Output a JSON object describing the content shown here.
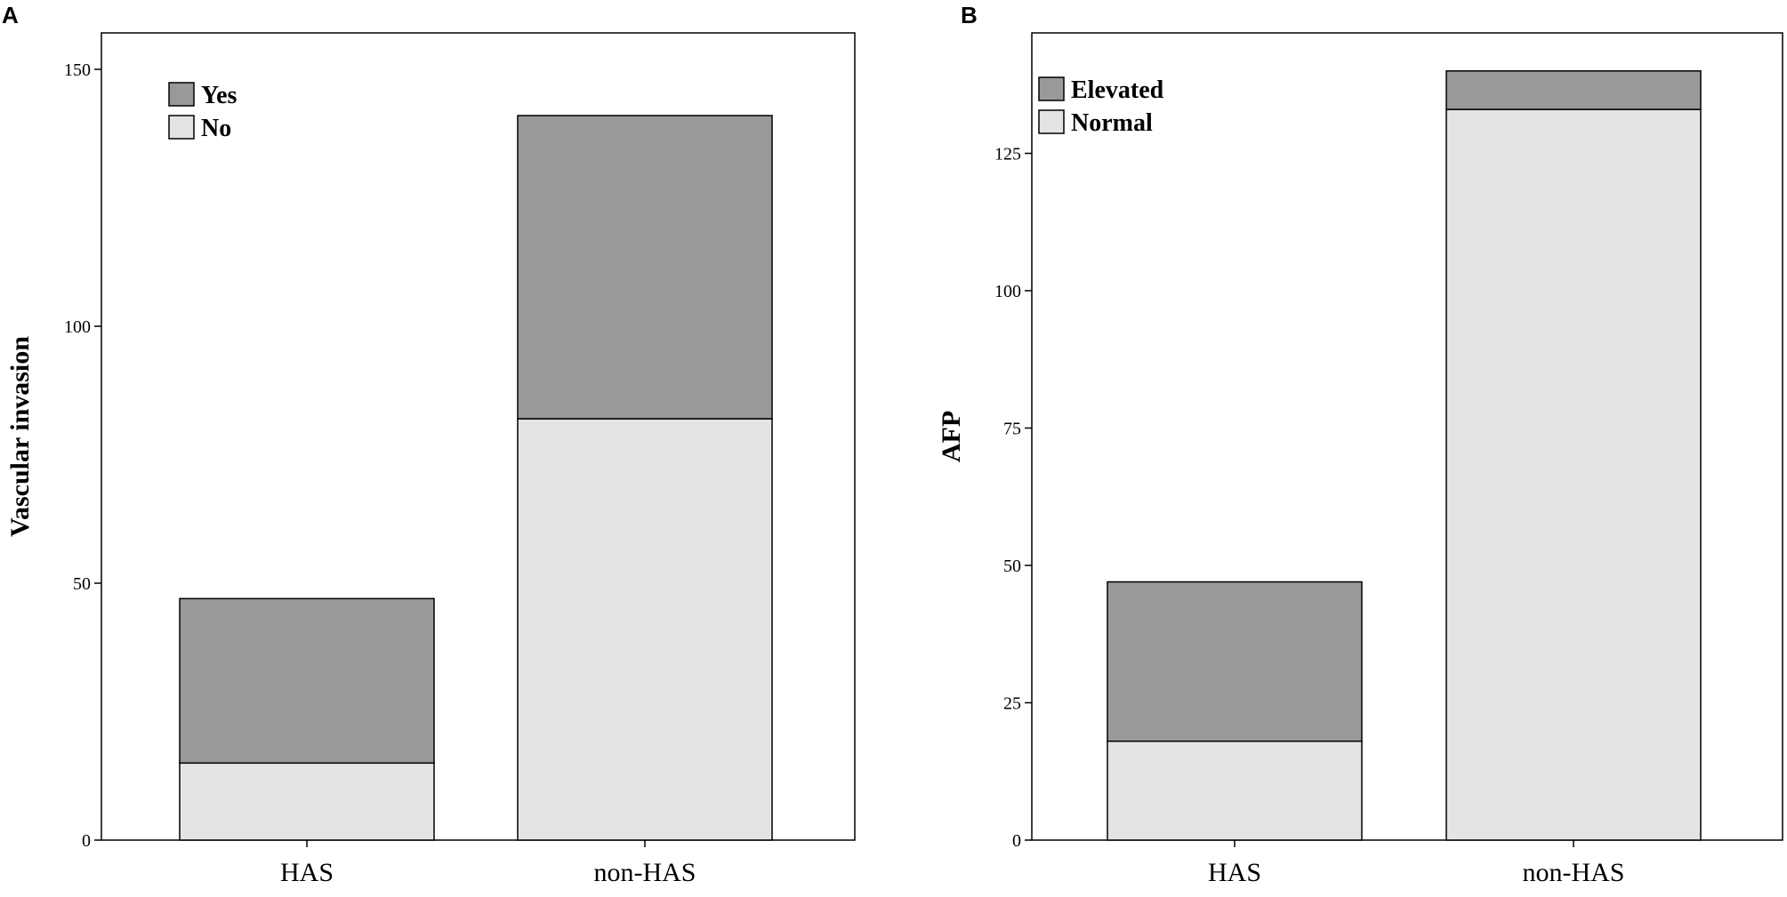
{
  "chart_data": [
    {
      "panel": "A",
      "type": "bar",
      "stacked": true,
      "categories": [
        "HAS",
        "non-HAS"
      ],
      "series": [
        {
          "name": "No",
          "values": [
            15,
            82
          ]
        },
        {
          "name": "Yes",
          "values": [
            32,
            59
          ]
        }
      ],
      "ylabel": "Vascular invasion",
      "ylim": [
        0,
        150
      ],
      "yticks": [
        0,
        50,
        100,
        150
      ],
      "legend": {
        "position": "top-left",
        "entries": [
          "Yes",
          "No"
        ]
      },
      "colors": {
        "Yes": "#999999",
        "No": "#e4e4e4"
      },
      "grid": false
    },
    {
      "panel": "B",
      "type": "bar",
      "stacked": true,
      "categories": [
        "HAS",
        "non-HAS"
      ],
      "series": [
        {
          "name": "Normal",
          "values": [
            18,
            133
          ]
        },
        {
          "name": "Elevated",
          "values": [
            29,
            7
          ]
        }
      ],
      "ylabel": "AFP",
      "ylim": [
        0,
        140
      ],
      "yticks": [
        0,
        25,
        50,
        75,
        100,
        125
      ],
      "legend": {
        "position": "top-left",
        "entries": [
          "Elevated",
          "Normal"
        ]
      },
      "colors": {
        "Elevated": "#999999",
        "Normal": "#e4e4e4"
      },
      "grid": false
    }
  ]
}
